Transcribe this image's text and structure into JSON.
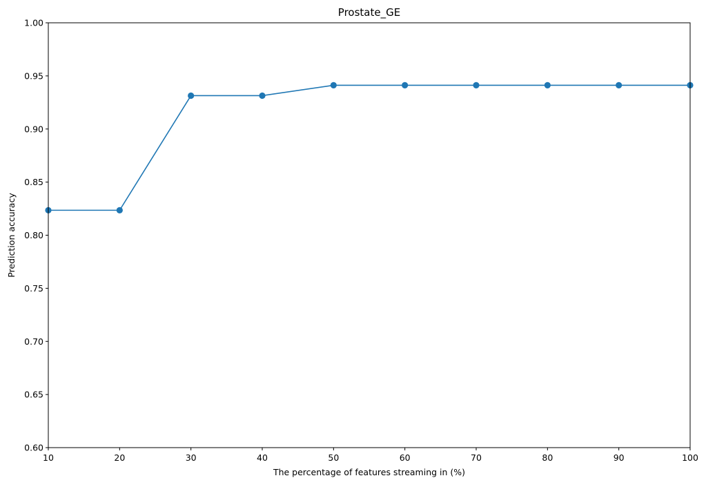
{
  "chart_data": {
    "type": "line",
    "title": "Prostate_GE",
    "xlabel": "The percentage of features streaming in (%)",
    "ylabel": "Prediction accuracy",
    "xlim": [
      10,
      100
    ],
    "ylim": [
      0.6,
      1.0
    ],
    "x_ticks": [
      10,
      20,
      30,
      40,
      50,
      60,
      70,
      80,
      90,
      100
    ],
    "y_ticks": [
      "0.60",
      "0.65",
      "0.70",
      "0.75",
      "0.80",
      "0.85",
      "0.90",
      "0.95",
      "1.00"
    ],
    "grid": false,
    "series": [
      {
        "x": [
          10,
          20,
          30,
          40,
          50,
          60,
          70,
          80,
          90,
          100
        ],
        "y": [
          0.8235,
          0.8235,
          0.9314,
          0.9314,
          0.9412,
          0.9412,
          0.9412,
          0.9412,
          0.9412,
          0.9412
        ],
        "color": "#1f77b4",
        "marker": "circle"
      }
    ]
  }
}
